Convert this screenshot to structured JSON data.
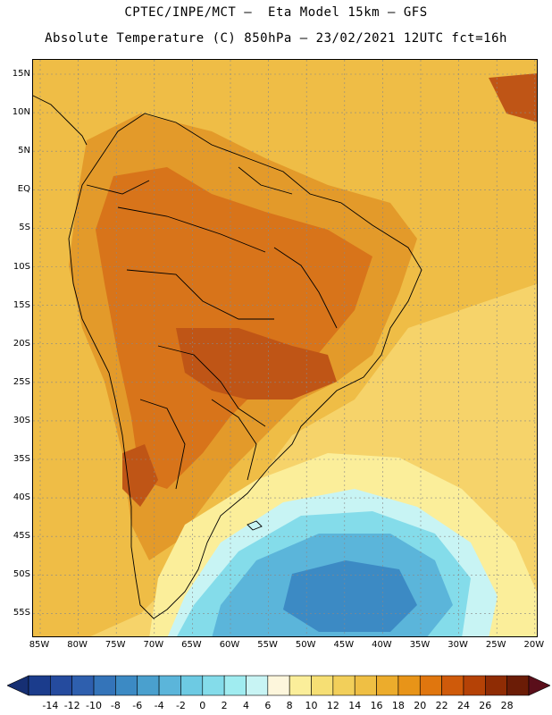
{
  "header": {
    "line1": "CPTEC/INPE/MCT –  Eta Model 15km – GFS",
    "line2": "Absolute Temperature (C) 850hPa – 23/02/2021 12UTC fct=16h"
  },
  "axes": {
    "lat_labels": [
      "15N",
      "10N",
      "5N",
      "EQ",
      "5S",
      "10S",
      "15S",
      "20S",
      "25S",
      "30S",
      "35S",
      "40S",
      "45S",
      "50S",
      "55S"
    ],
    "lon_labels": [
      "85W",
      "80W",
      "75W",
      "70W",
      "65W",
      "60W",
      "55W",
      "50W",
      "45W",
      "40W",
      "35W",
      "30W",
      "25W",
      "20W"
    ]
  },
  "colorbar": {
    "labels": [
      "-14",
      "-12",
      "-10",
      "-8",
      "-6",
      "-4",
      "-2",
      "0",
      "2",
      "4",
      "6",
      "8",
      "10",
      "12",
      "14",
      "16",
      "18",
      "20",
      "22",
      "24",
      "26",
      "28"
    ],
    "colors": [
      "#1b3c8c",
      "#254b9e",
      "#2e5fae",
      "#3474b9",
      "#3c8ac4",
      "#4aa0ce",
      "#5bb5da",
      "#6dcae3",
      "#84dcea",
      "#a0ecf0",
      "#c8f4f4",
      "#fdf6dc",
      "#fbee9a",
      "#f6df74",
      "#f2cf5a",
      "#efbf44",
      "#ecac2c",
      "#e89418",
      "#e0760e",
      "#cf5a0a",
      "#b54206",
      "#8f2c04",
      "#6b1c06"
    ],
    "underflow_color": "#162f73",
    "overflow_color": "#5a0e1a"
  },
  "map_colors": {
    "ocean_warm": "#f6d36a",
    "ocean_mid": "#efbd46",
    "land": "#e39a2a",
    "hot": "#d8741a",
    "hottest": "#bf5516",
    "cool": "#fbee9a",
    "cold1": "#c8f4f4",
    "cold2": "#84dcea",
    "cold3": "#5bb5da",
    "cold4": "#3c8ac4",
    "coast": "#000000",
    "grid": "#888888"
  }
}
